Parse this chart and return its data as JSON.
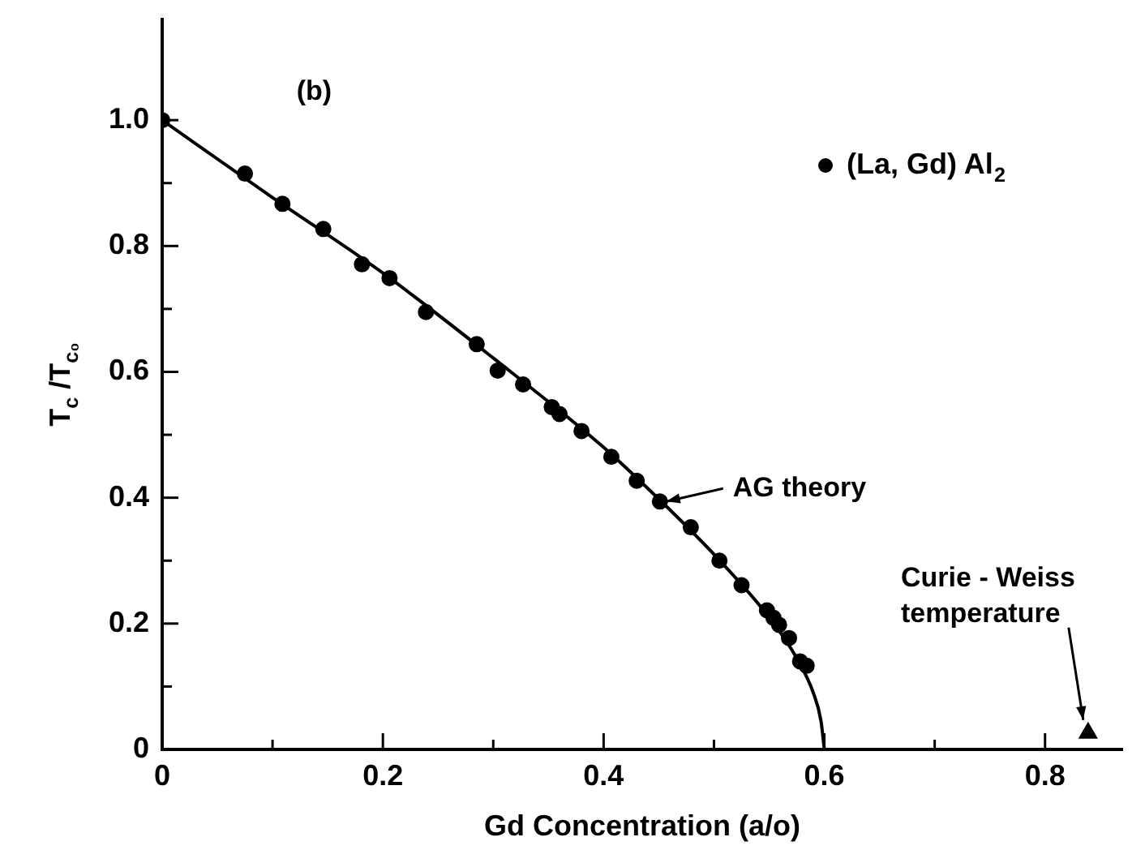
{
  "chart_data": {
    "type": "scatter",
    "xlabel": "Gd Concentration (a/o)",
    "ylabel": "T$_{c}$ /T$_{c₀}$",
    "legend": "top right",
    "xlim": [
      0,
      0.87
    ],
    "ylim": [
      0,
      1.16
    ],
    "xticks": [
      0,
      {
        "value": 0.1,
        "label": null
      },
      0.2,
      {
        "value": 0.3,
        "label": null
      },
      0.4,
      {
        "value": 0.5,
        "label": null
      },
      0.6,
      {
        "value": 0.7,
        "label": null
      },
      0.8
    ],
    "yticks": [
      0,
      {
        "value": 0.1,
        "label": null
      },
      0.2,
      {
        "value": 0.3,
        "label": null
      },
      0.4,
      {
        "value": 0.5,
        "label": null
      },
      0.6,
      {
        "value": 0.7,
        "label": null
      },
      0.8,
      {
        "value": 0.9,
        "label": null
      },
      {
        "value": 1,
        "label": "1.0"
      }
    ],
    "series": [
      {
        "name": "(La, Gd) Al$_{2}$",
        "type": "scatter",
        "marker": "circle",
        "color": "#000000",
        "x": [
          0,
          0.075,
          0.109,
          0.146,
          0.181,
          0.206,
          0.239,
          0.285,
          0.304,
          0.327,
          0.353,
          0.36,
          0.38,
          0.407,
          0.43,
          0.451,
          0.479,
          0.505,
          0.525,
          0.548,
          0.554,
          0.559,
          0.568,
          0.578,
          0.584
        ],
        "values": [
          1,
          0.915,
          0.867,
          0.827,
          0.771,
          0.749,
          0.695,
          0.644,
          0.602,
          0.58,
          0.544,
          0.533,
          0.506,
          0.465,
          0.427,
          0.394,
          0.353,
          0.3,
          0.261,
          0.221,
          0.209,
          0.198,
          0.177,
          0.14,
          0.133
        ]
      },
      {
        "type": "line",
        "marker": "none",
        "line_style": "solid",
        "color": "#000000",
        "x": [
          0,
          0.1,
          0.2,
          0.3,
          0.4,
          0.45,
          0.5,
          0.55,
          0.575,
          0.59,
          0.597,
          0.6
        ],
        "values": [
          1,
          0.877,
          0.757,
          0.622,
          0.48,
          0.398,
          0.31,
          0.21,
          0.145,
          0.09,
          0.045,
          0
        ]
      },
      {
        "type": "scatter",
        "marker": "triangle",
        "color": "#000000",
        "x": [
          0.839
        ],
        "values": [
          0.026
        ]
      }
    ],
    "annotations": [
      "(b)",
      {
        "text": "AG theory",
        "x": 0.451,
        "y": 0.394
      },
      {
        "text": "Curie - Weiss\ntemperature",
        "x": 0.839,
        "y": 0.026
      }
    ]
  }
}
